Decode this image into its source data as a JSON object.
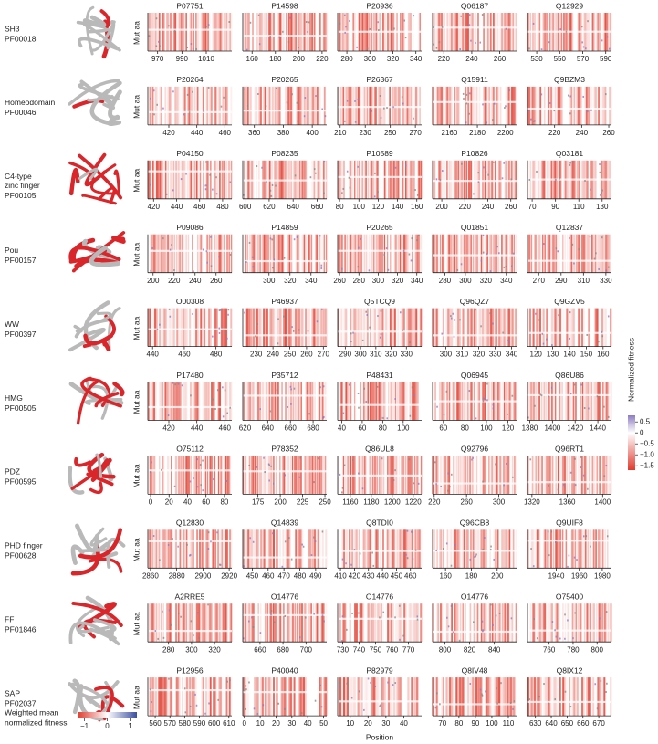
{
  "chart_data": {
    "type": "heatmap-grid",
    "y_label": "Mut aa",
    "x_label": "Position",
    "colorbar": {
      "label": "Normalized fitness",
      "lim": [
        -1.7,
        0.8
      ],
      "colors": [
        "#e03b2d",
        "#ffffff",
        "#8e7cc3"
      ],
      "ticks": [
        0.5,
        0,
        {
          "value": -0.5,
          "label": "−0.5"
        },
        {
          "value": -1,
          "label": "−1.0"
        },
        {
          "value": -1.5,
          "label": "−1.5"
        }
      ]
    },
    "structure_legend": {
      "label": [
        "Weighted mean",
        "normalized fitness"
      ],
      "lim": [
        -1.3,
        1.3
      ],
      "colors": [
        "#e03b2d",
        "#ffffff",
        "#3b4fa0"
      ],
      "ticks": [
        {
          "value": -1,
          "label": "−1"
        },
        0,
        1
      ]
    },
    "rows": [
      {
        "name": [
          "SH3"
        ],
        "pfam": "PF00018",
        "panels": [
          {
            "id": "P07751",
            "xlim": [
              962,
              1031
            ],
            "xticks": [
              970,
              990,
              1010
            ]
          },
          {
            "id": "P14598",
            "xlim": [
              152,
              224
            ],
            "xticks": [
              160,
              180,
              200,
              220
            ]
          },
          {
            "id": "P20936",
            "xlim": [
              272,
              345
            ],
            "xticks": [
              280,
              300,
              320,
              340
            ]
          },
          {
            "id": "Q06187",
            "xlim": [
              212,
              272
            ],
            "xticks": [
              220,
              240,
              260
            ]
          },
          {
            "id": "Q12929",
            "xlim": [
              522,
              595
            ],
            "xticks": [
              530,
              550,
              570,
              590
            ]
          }
        ]
      },
      {
        "name": [
          "Homeodomain"
        ],
        "pfam": "PF00046",
        "panels": [
          {
            "id": "P20264",
            "xlim": [
              405,
              465
            ],
            "xticks": [
              420,
              440,
              460
            ]
          },
          {
            "id": "P20265",
            "xlim": [
              352,
              410
            ],
            "xticks": [
              360,
              380,
              400
            ]
          },
          {
            "id": "P26367",
            "xlim": [
              208,
              275
            ],
            "xticks": [
              210,
              230,
              250,
              270
            ]
          },
          {
            "id": "Q15911",
            "xlim": [
              2148,
              2208
            ],
            "xticks": [
              2160,
              2180,
              2200
            ]
          },
          {
            "id": "Q9BZM3",
            "xlim": [
              200,
              262
            ],
            "xticks": [
              220,
              240,
              260
            ]
          }
        ]
      },
      {
        "name": [
          "C4-type",
          "zinc finger"
        ],
        "pfam": "PF00105",
        "panels": [
          {
            "id": "P04150",
            "xlim": [
              415,
              488
            ],
            "xticks": [
              420,
              440,
              460,
              480
            ]
          },
          {
            "id": "P08235",
            "xlim": [
              598,
              668
            ],
            "xticks": [
              600,
              620,
              640,
              660
            ]
          },
          {
            "id": "P10589",
            "xlim": [
              78,
              165
            ],
            "xticks": [
              80,
              100,
              120,
              140,
              160
            ]
          },
          {
            "id": "P10826",
            "xlim": [
              192,
              265
            ],
            "xticks": [
              200,
              220,
              240,
              260
            ]
          },
          {
            "id": "Q03181",
            "xlim": [
              66,
              138
            ],
            "xticks": [
              70,
              90,
              110,
              130
            ]
          }
        ]
      },
      {
        "name": [
          "Pou"
        ],
        "pfam": "PF00157",
        "panels": [
          {
            "id": "P09086",
            "xlim": [
              195,
              275
            ],
            "xticks": [
              200,
              220,
              240,
              260
            ]
          },
          {
            "id": "P14859",
            "xlim": [
              275,
              355
            ],
            "xticks": [
              300,
              320,
              340
            ]
          },
          {
            "id": "P20265",
            "xlim": [
              258,
              345
            ],
            "xticks": [
              260,
              280,
              300,
              320,
              340
            ]
          },
          {
            "id": "Q01851",
            "xlim": [
              268,
              350
            ],
            "xticks": [
              280,
              300,
              320,
              340
            ]
          },
          {
            "id": "Q12837",
            "xlim": [
              260,
              335
            ],
            "xticks": [
              270,
              290,
              310,
              330
            ]
          }
        ]
      },
      {
        "name": [
          "WW"
        ],
        "pfam": "PF00397",
        "panels": [
          {
            "id": "O00308",
            "xlim": [
              437,
              490
            ],
            "xticks": [
              440,
              460,
              480
            ]
          },
          {
            "id": "P46937",
            "xlim": [
              222,
              272
            ],
            "xticks": [
              230,
              240,
              250,
              260,
              270
            ]
          },
          {
            "id": "Q5TCQ9",
            "xlim": [
              285,
              340
            ],
            "xticks": [
              290,
              300,
              310,
              320,
              330
            ]
          },
          {
            "id": "Q96QZ7",
            "xlim": [
              292,
              343
            ],
            "xticks": [
              300,
              310,
              320,
              330,
              340
            ]
          },
          {
            "id": "Q9GZV5",
            "xlim": [
              115,
              165
            ],
            "xticks": [
              120,
              130,
              140,
              150,
              160
            ]
          }
        ]
      },
      {
        "name": [
          "HMG"
        ],
        "pfam": "PF00505",
        "panels": [
          {
            "id": "P17480",
            "xlim": [
              405,
              465
            ],
            "xticks": [
              420,
              440,
              460
            ]
          },
          {
            "id": "P35712",
            "xlim": [
              618,
              692
            ],
            "xticks": [
              620,
              640,
              660,
              680
            ]
          },
          {
            "id": "P48431",
            "xlim": [
              36,
              118
            ],
            "xticks": [
              40,
              60,
              80,
              100
            ]
          },
          {
            "id": "Q06945",
            "xlim": [
              50,
              128
            ],
            "xticks": [
              60,
              80,
              100,
              120
            ]
          },
          {
            "id": "Q86U86",
            "xlim": [
              1378,
              1452
            ],
            "xticks": [
              1380,
              1400,
              1420,
              1440
            ]
          }
        ]
      },
      {
        "name": [
          "PDZ"
        ],
        "pfam": "PF00595",
        "panels": [
          {
            "id": "O75112",
            "xlim": [
              -3,
              88
            ],
            "xticks": [
              0,
              20,
              40,
              60,
              80
            ]
          },
          {
            "id": "P78352",
            "xlim": [
              158,
              252
            ],
            "xticks": [
              175,
              200,
              225,
              250
            ]
          },
          {
            "id": "Q86UL8",
            "xlim": [
              1148,
              1228
            ],
            "xticks": [
              1160,
              1180,
              1200,
              1220
            ]
          },
          {
            "id": "Q92796",
            "xlim": [
              218,
              322
            ],
            "xticks": [
              220,
              260,
              300
            ]
          },
          {
            "id": "Q96RT1",
            "xlim": [
              1315,
              1410
            ],
            "xticks": [
              1320,
              1360,
              1400
            ]
          }
        ]
      },
      {
        "name": [
          "PHD finger"
        ],
        "pfam": "PF00628",
        "panels": [
          {
            "id": "Q12830",
            "xlim": [
              2858,
              2922
            ],
            "xticks": [
              2860,
              2880,
              2900,
              2920
            ]
          },
          {
            "id": "Q14839",
            "xlim": [
              444,
              497
            ],
            "xticks": [
              450,
              460,
              470,
              480,
              490
            ]
          },
          {
            "id": "Q8TDI0",
            "xlim": [
              408,
              468
            ],
            "xticks": [
              410,
              420,
              430,
              440,
              450,
              460
            ]
          },
          {
            "id": "Q96CB8",
            "xlim": [
              150,
              215
            ],
            "xticks": [
              160,
              180,
              200
            ]
          },
          {
            "id": "Q9UIF8",
            "xlim": [
              1915,
              1988
            ],
            "xticks": [
              1940,
              1960,
              1980
            ]
          }
        ]
      },
      {
        "name": [
          "FF"
        ],
        "pfam": "PF01846",
        "panels": [
          {
            "id": "A2RRE5",
            "xlim": [
              262,
              335
            ],
            "xticks": [
              280,
              300,
              320
            ]
          },
          {
            "id": "O14776",
            "xlim": [
              645,
              718
            ],
            "xticks": [
              660,
              680,
              700
            ]
          },
          {
            "id": "O14776",
            "xlim": [
              727,
              778
            ],
            "xticks": [
              730,
              740,
              750,
              760,
              770
            ]
          },
          {
            "id": "O14776",
            "xlim": [
              790,
              858
            ],
            "xticks": [
              800,
              820,
              840
            ]
          },
          {
            "id": "O75400",
            "xlim": [
              742,
              812
            ],
            "xticks": [
              760,
              780,
              800
            ]
          }
        ]
      },
      {
        "name": [
          "SAP"
        ],
        "pfam": "PF02037",
        "panels": [
          {
            "id": "P12956",
            "xlim": [
              555,
              612
            ],
            "xticks": [
              560,
              570,
              580,
              590,
              600,
              610
            ]
          },
          {
            "id": "P40040",
            "xlim": [
              -1,
              52
            ],
            "xticks": [
              0,
              10,
              20,
              30,
              40,
              50
            ]
          },
          {
            "id": "P82979",
            "xlim": [
              3,
              50
            ],
            "xticks": [
              10,
              20,
              30,
              40
            ]
          },
          {
            "id": "Q8IV48",
            "xlim": [
              64,
              115
            ],
            "xticks": [
              70,
              80,
              90,
              100,
              110
            ]
          },
          {
            "id": "Q8IX12",
            "xlim": [
              625,
              678
            ],
            "xticks": [
              630,
              640,
              650,
              660,
              670
            ]
          }
        ]
      }
    ]
  }
}
